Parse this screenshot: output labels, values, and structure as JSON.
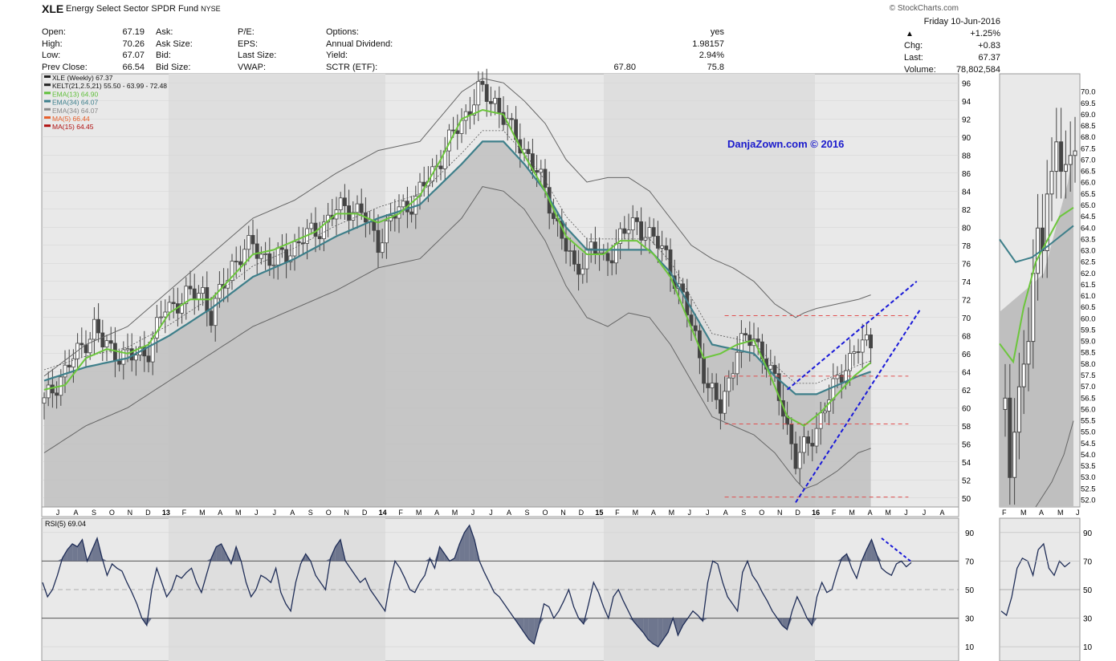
{
  "header": {
    "symbol": "XLE",
    "name": "Energy Select Sector SPDR Fund",
    "exchange": "NYSE",
    "credit": "© StockCharts.com",
    "date": "Friday 10-Jun-2016",
    "change_pct": "+1.25%",
    "chg_label": "Chg:",
    "chg": "+0.83",
    "last_label": "Last:",
    "last": "67.37",
    "volume_label": "Volume:",
    "volume": "78,802,584",
    "fields": [
      {
        "l": "Open:",
        "v": "67.19"
      },
      {
        "l": "High:",
        "v": "70.26"
      },
      {
        "l": "Low:",
        "v": "67.07"
      },
      {
        "l": "Prev Close:",
        "v": "66.54"
      },
      {
        "l": "Ask:",
        "v": ""
      },
      {
        "l": "Ask Size:",
        "v": ""
      },
      {
        "l": "Bid:",
        "v": ""
      },
      {
        "l": "Bid Size:",
        "v": ""
      },
      {
        "l": "P/E:",
        "v": ""
      },
      {
        "l": "EPS:",
        "v": ""
      },
      {
        "l": "Last Size:",
        "v": ""
      },
      {
        "l": "VWAP:",
        "v": "67.80"
      },
      {
        "l": "Options:",
        "v": "yes"
      },
      {
        "l": "Annual Dividend:",
        "v": "1.98157"
      },
      {
        "l": "Yield:",
        "v": "2.94%"
      },
      {
        "l": "SCTR (ETF):",
        "v": "75.8"
      }
    ]
  },
  "legend": [
    {
      "text": "XLE (Weekly) 67.37",
      "color": "#222222"
    },
    {
      "text": "KELT(21,2.5,21) 55.50 - 63.99 - 72.48",
      "color": "#222222"
    },
    {
      "text": "EMA(13) 64.90",
      "color": "#5fbf3a"
    },
    {
      "text": "EMA(34) 64.07",
      "color": "#3d7f8c"
    },
    {
      "text": "EMA(34) 64.07",
      "color": "#888888"
    },
    {
      "text": "MA(5) 66.44",
      "color": "#e8602c"
    },
    {
      "text": "MA(15) 64.45",
      "color": "#b01010"
    }
  ],
  "watermark": "DanjaZown.com © 2016",
  "rsi_legend": "RSI(5) 69.04",
  "colors": {
    "candle": "#444444",
    "ema13": "#6cc63c",
    "ema34": "#3e7f8a",
    "kelt": "#666666",
    "trend": "#1a1ad8",
    "dashed_red": "#e05050",
    "band_fill": "#bfbfbf",
    "panel_bg": "#e9e9e9",
    "rsi_fill": "#5a6480",
    "watermark": "#1a1acc"
  },
  "chart_data": [
    {
      "type": "candlestick",
      "title": "XLE (Weekly)",
      "period": "2012-06 to 2016-06",
      "ylim": [
        49,
        97
      ],
      "yticks": [
        50,
        52,
        54,
        56,
        58,
        60,
        62,
        64,
        66,
        68,
        70,
        72,
        74,
        76,
        78,
        80,
        82,
        84,
        86,
        88,
        90,
        92,
        94,
        96
      ],
      "xlabels": [
        "J",
        "A",
        "S",
        "O",
        "N",
        "D",
        "13",
        "F",
        "M",
        "A",
        "M",
        "J",
        "J",
        "A",
        "S",
        "O",
        "N",
        "D",
        "14",
        "F",
        "M",
        "A",
        "M",
        "J",
        "J",
        "A",
        "S",
        "O",
        "N",
        "D",
        "15",
        "F",
        "M",
        "A",
        "M",
        "J",
        "J",
        "A",
        "S",
        "O",
        "N",
        "D",
        "16",
        "F",
        "M",
        "A",
        "M",
        "J",
        "J",
        "A"
      ],
      "close_path": [
        [
          0,
          60.5
        ],
        [
          4,
          63.5
        ],
        [
          8,
          66
        ],
        [
          12,
          69
        ],
        [
          14,
          67
        ],
        [
          18,
          66
        ],
        [
          21,
          65.5
        ],
        [
          25,
          66.5
        ],
        [
          29,
          71
        ],
        [
          33,
          72
        ],
        [
          38,
          73
        ],
        [
          40,
          70
        ],
        [
          45,
          76
        ],
        [
          50,
          78
        ],
        [
          55,
          76
        ],
        [
          60,
          78
        ],
        [
          66,
          80
        ],
        [
          72,
          82.5
        ],
        [
          76,
          81.5
        ],
        [
          80,
          78.5
        ],
        [
          85,
          82
        ],
        [
          89,
          83
        ],
        [
          94,
          87
        ],
        [
          99,
          91
        ],
        [
          104,
          95
        ],
        [
          108,
          94
        ],
        [
          112,
          90.5
        ],
        [
          116,
          88
        ],
        [
          120,
          84
        ],
        [
          124,
          79
        ],
        [
          127,
          75
        ],
        [
          131,
          78
        ],
        [
          134,
          76
        ],
        [
          138,
          79
        ],
        [
          142,
          80.5
        ],
        [
          145,
          79
        ],
        [
          149,
          77
        ],
        [
          152,
          73
        ],
        [
          156,
          68
        ],
        [
          159,
          62
        ],
        [
          162,
          60
        ],
        [
          166,
          66.5
        ],
        [
          170,
          68
        ],
        [
          173,
          65
        ],
        [
          177,
          60
        ],
        [
          180,
          54
        ],
        [
          183,
          56
        ],
        [
          186,
          59
        ],
        [
          189,
          62
        ],
        [
          192,
          65
        ],
        [
          195,
          66.5
        ],
        [
          198,
          67.4
        ]
      ],
      "kelt_upper": [
        [
          0,
          63.5
        ],
        [
          10,
          67
        ],
        [
          20,
          69
        ],
        [
          30,
          73
        ],
        [
          40,
          77
        ],
        [
          50,
          81
        ],
        [
          60,
          83
        ],
        [
          70,
          86
        ],
        [
          80,
          88.5
        ],
        [
          90,
          89.5
        ],
        [
          100,
          95
        ],
        [
          105,
          96.5
        ],
        [
          110,
          96
        ],
        [
          115,
          94
        ],
        [
          120,
          91.5
        ],
        [
          125,
          87.5
        ],
        [
          130,
          85
        ],
        [
          135,
          85.5
        ],
        [
          140,
          85.5
        ],
        [
          145,
          84
        ],
        [
          150,
          81
        ],
        [
          155,
          78
        ],
        [
          160,
          76.5
        ],
        [
          165,
          75.5
        ],
        [
          170,
          74
        ],
        [
          175,
          71.5
        ],
        [
          180,
          70
        ],
        [
          182,
          70.5
        ],
        [
          185,
          71
        ],
        [
          190,
          71.5
        ],
        [
          195,
          72
        ],
        [
          198,
          72.5
        ]
      ],
      "kelt_lower": [
        [
          0,
          55
        ],
        [
          10,
          58
        ],
        [
          20,
          60
        ],
        [
          30,
          63
        ],
        [
          40,
          66
        ],
        [
          50,
          69
        ],
        [
          60,
          71
        ],
        [
          70,
          73
        ],
        [
          80,
          75.5
        ],
        [
          90,
          76.5
        ],
        [
          100,
          81
        ],
        [
          105,
          84.5
        ],
        [
          110,
          84
        ],
        [
          115,
          82
        ],
        [
          120,
          78.5
        ],
        [
          125,
          73.5
        ],
        [
          130,
          70
        ],
        [
          135,
          69
        ],
        [
          140,
          70.5
        ],
        [
          145,
          70
        ],
        [
          150,
          67
        ],
        [
          155,
          63
        ],
        [
          160,
          59
        ],
        [
          165,
          58
        ],
        [
          170,
          57
        ],
        [
          175,
          55
        ],
        [
          180,
          52
        ],
        [
          182,
          51
        ],
        [
          185,
          51.5
        ],
        [
          190,
          53
        ],
        [
          195,
          55
        ],
        [
          198,
          55.5
        ]
      ],
      "ema34": [
        [
          0,
          63
        ],
        [
          10,
          64.5
        ],
        [
          20,
          65.5
        ],
        [
          30,
          68
        ],
        [
          40,
          71
        ],
        [
          50,
          74.5
        ],
        [
          60,
          76.5
        ],
        [
          70,
          79
        ],
        [
          80,
          81
        ],
        [
          90,
          82.5
        ],
        [
          100,
          87
        ],
        [
          105,
          89.5
        ],
        [
          110,
          89.5
        ],
        [
          115,
          87
        ],
        [
          120,
          84
        ],
        [
          125,
          80
        ],
        [
          130,
          77.5
        ],
        [
          135,
          77.5
        ],
        [
          140,
          77.5
        ],
        [
          145,
          77.5
        ],
        [
          150,
          75
        ],
        [
          155,
          71
        ],
        [
          160,
          67
        ],
        [
          165,
          66.5
        ],
        [
          170,
          66
        ],
        [
          175,
          63.5
        ],
        [
          180,
          61.5
        ],
        [
          185,
          61.5
        ],
        [
          190,
          62.5
        ],
        [
          195,
          63.5
        ],
        [
          198,
          64
        ]
      ],
      "ema13": [
        [
          0,
          62
        ],
        [
          5,
          62.5
        ],
        [
          10,
          65.5
        ],
        [
          15,
          66.5
        ],
        [
          20,
          66
        ],
        [
          25,
          67
        ],
        [
          30,
          70.5
        ],
        [
          35,
          72
        ],
        [
          40,
          72
        ],
        [
          45,
          74.5
        ],
        [
          50,
          77
        ],
        [
          55,
          77.5
        ],
        [
          60,
          78.5
        ],
        [
          65,
          79.5
        ],
        [
          70,
          81.5
        ],
        [
          75,
          81.5
        ],
        [
          80,
          80.5
        ],
        [
          85,
          81.5
        ],
        [
          90,
          83.5
        ],
        [
          95,
          87.5
        ],
        [
          100,
          92
        ],
        [
          105,
          93
        ],
        [
          110,
          92.5
        ],
        [
          115,
          88
        ],
        [
          120,
          84
        ],
        [
          125,
          79
        ],
        [
          130,
          77
        ],
        [
          134,
          77
        ],
        [
          138,
          78.5
        ],
        [
          142,
          78.5
        ],
        [
          146,
          77
        ],
        [
          150,
          74.5
        ],
        [
          154,
          70
        ],
        [
          158,
          65.5
        ],
        [
          162,
          66
        ],
        [
          166,
          67
        ],
        [
          170,
          67.5
        ],
        [
          174,
          63.5
        ],
        [
          178,
          59
        ],
        [
          182,
          58
        ],
        [
          186,
          59.5
        ],
        [
          190,
          61.5
        ],
        [
          194,
          63.5
        ],
        [
          198,
          65
        ]
      ],
      "trendlines": [
        [
          [
            178,
            62
          ],
          [
            209,
            74
          ]
        ],
        [
          [
            180,
            49.5
          ],
          [
            210,
            71
          ]
        ]
      ],
      "support_levels": [
        70.2,
        63.5,
        58.2,
        50.1
      ]
    },
    {
      "type": "line",
      "title": "RSI(5)",
      "ylim": [
        0,
        100
      ],
      "yticks": [
        10,
        30,
        50,
        70,
        90
      ],
      "values": [
        55,
        45,
        50,
        60,
        72,
        78,
        82,
        80,
        85,
        70,
        78,
        86,
        72,
        60,
        68,
        65,
        63,
        55,
        48,
        40,
        30,
        25,
        50,
        65,
        55,
        45,
        50,
        60,
        58,
        62,
        65,
        55,
        48,
        60,
        72,
        80,
        82,
        75,
        68,
        80,
        70,
        55,
        45,
        50,
        60,
        58,
        55,
        65,
        48,
        40,
        35,
        55,
        68,
        75,
        70,
        60,
        55,
        50,
        72,
        80,
        85,
        70,
        65,
        60,
        55,
        58,
        50,
        45,
        40,
        35,
        55,
        70,
        65,
        58,
        50,
        48,
        55,
        60,
        72,
        65,
        80,
        75,
        70,
        72,
        82,
        90,
        95,
        85,
        70,
        62,
        55,
        48,
        45,
        40,
        35,
        30,
        25,
        20,
        15,
        12,
        25,
        40,
        38,
        30,
        35,
        42,
        50,
        38,
        30,
        26,
        40,
        55,
        48,
        38,
        30,
        45,
        50,
        42,
        35,
        28,
        24,
        20,
        15,
        12,
        10,
        15,
        20,
        30,
        18,
        25,
        30,
        35,
        32,
        28,
        55,
        70,
        68,
        55,
        45,
        40,
        35,
        62,
        70,
        60,
        55,
        48,
        42,
        35,
        30,
        25,
        22,
        35,
        45,
        38,
        30,
        25,
        45,
        55,
        48,
        50,
        62,
        72,
        75,
        65,
        58,
        70,
        78,
        85,
        75,
        65,
        62,
        60,
        68,
        70,
        66,
        69
      ]
    }
  ]
}
